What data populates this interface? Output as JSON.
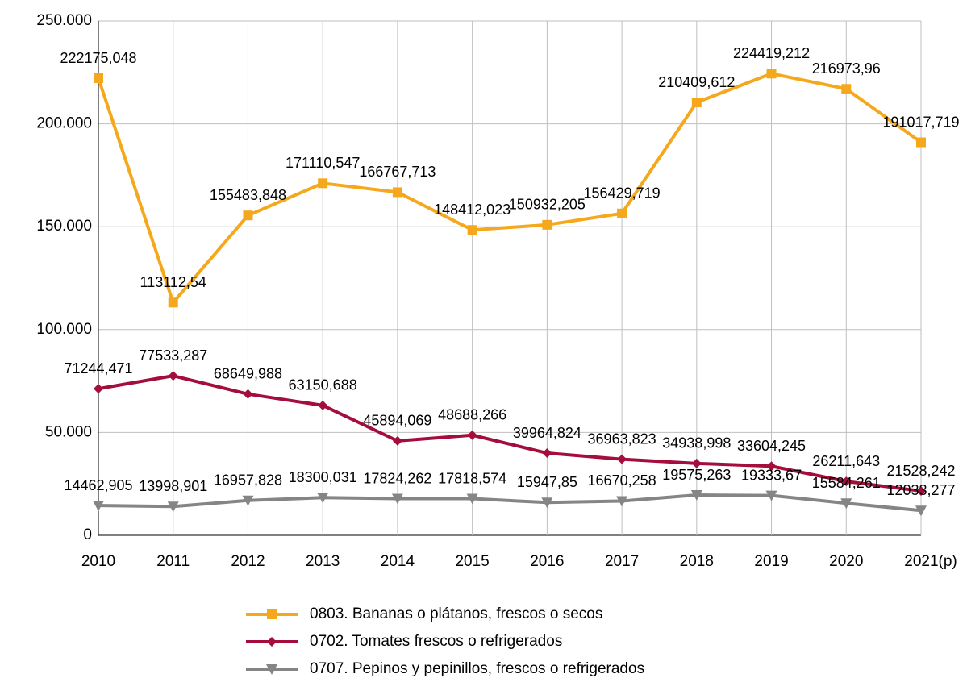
{
  "chart_data": {
    "type": "line",
    "categories": [
      "2010",
      "2011",
      "2012",
      "2013",
      "2014",
      "2015",
      "2016",
      "2017",
      "2018",
      "2019",
      "2020",
      "2021(p)"
    ],
    "ylim": [
      0,
      250000
    ],
    "yticks": [
      0,
      {
        "value": 50000,
        "label": "50.000"
      },
      {
        "value": 100000,
        "label": "100.000"
      },
      {
        "value": 150000,
        "label": "150.000"
      },
      {
        "value": 200000,
        "label": "200.000"
      },
      {
        "value": 250000,
        "label": "250.000"
      }
    ],
    "grid": true,
    "legend": "bottom",
    "series": [
      {
        "name": "0803. Bananas o plátanos, frescos o secos",
        "color": "#f5a81c",
        "marker": "square",
        "values": [
          222175.048,
          113112.54,
          155483.848,
          171110.547,
          166767.713,
          148412.023,
          150932.205,
          156429.719,
          210409.612,
          224419.212,
          216973.96,
          191017.719
        ],
        "value_labels": [
          "222175,048",
          "113112,54",
          "155483,848",
          "171110,547",
          "166767,713",
          "148412,023",
          "150932,205",
          "156429,719",
          "210409,612",
          "224419,212",
          "216973,96",
          "191017,719"
        ]
      },
      {
        "name": "0702. Tomates frescos o refrigerados",
        "color": "#a50e3c",
        "marker": "diamond",
        "values": [
          71244.471,
          77533.287,
          68649.988,
          63150.688,
          45894.069,
          48688.266,
          39964.824,
          36963.823,
          34938.998,
          33604.245,
          26211.643,
          21528.242
        ],
        "value_labels": [
          "71244,471",
          "77533,287",
          "68649,988",
          "63150,688",
          "45894,069",
          "48688,266",
          "39964,824",
          "36963,823",
          "34938,998",
          "33604,245",
          "26211,643",
          "21528,242"
        ]
      },
      {
        "name": "0707. Pepinos y pepinillos, frescos o refrigerados",
        "color": "#858585",
        "marker": "triangle-down",
        "values": [
          14462.905,
          13998.901,
          16957.828,
          18300.031,
          17824.262,
          17818.574,
          15947.85,
          16670.258,
          19575.263,
          19333.67,
          15584.261,
          12033.277
        ],
        "value_labels": [
          "14462,905",
          "13998,901",
          "16957,828",
          "18300,031",
          "17824,262",
          "17818,574",
          "15947,85",
          "16670,258",
          "19575,263",
          "19333,67",
          "15584,261",
          "12033,277"
        ]
      }
    ]
  }
}
